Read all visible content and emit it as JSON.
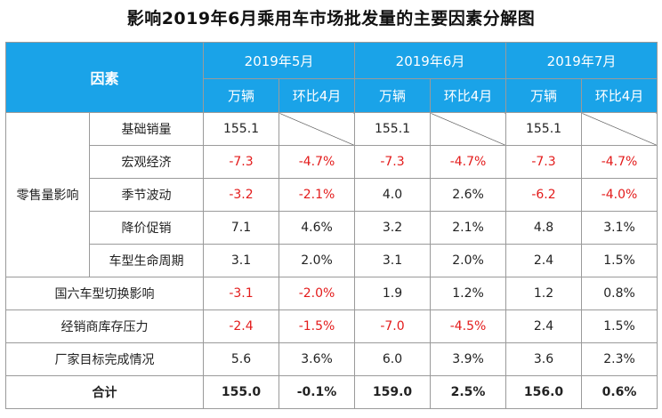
{
  "title": "影响2019年6月乘用车市场批发量的主要因素分解图",
  "header": {
    "factor": "因素",
    "months": [
      "2019年5月",
      "2019年6月",
      "2019年7月"
    ],
    "unit_label": "万辆",
    "ratio_label": "环比4月"
  },
  "retail_group": "零售量影响",
  "retail_rows": [
    {
      "name": "基础销量",
      "m5": "155.1",
      "m5r": "",
      "m6": "155.1",
      "m6r": "",
      "m7": "155.1",
      "m7r": ""
    },
    {
      "name": "宏观经济",
      "m5": "-7.3",
      "m5r": "-4.7%",
      "m6": "-7.3",
      "m6r": "-4.7%",
      "m7": "-7.3",
      "m7r": "-4.7%"
    },
    {
      "name": "季节波动",
      "m5": "-3.2",
      "m5r": "-2.1%",
      "m6": "4.0",
      "m6r": "2.6%",
      "m7": "-6.2",
      "m7r": "-4.0%"
    },
    {
      "name": "降价促销",
      "m5": "7.1",
      "m5r": "4.6%",
      "m6": "3.2",
      "m6r": "2.1%",
      "m7": "4.8",
      "m7r": "3.1%"
    },
    {
      "name": "车型生命周期",
      "m5": "3.1",
      "m5r": "2.0%",
      "m6": "3.1",
      "m6r": "2.0%",
      "m7": "2.4",
      "m7r": "1.5%"
    }
  ],
  "other_rows": [
    {
      "name": "国六车型切换影响",
      "m5": "-3.1",
      "m5r": "-2.0%",
      "m6": "1.9",
      "m6r": "1.2%",
      "m7": "1.2",
      "m7r": "0.8%"
    },
    {
      "name": "经销商库存压力",
      "m5": "-2.4",
      "m5r": "-1.5%",
      "m6": "-7.0",
      "m6r": "-4.5%",
      "m7": "2.4",
      "m7r": "1.5%"
    },
    {
      "name": "厂家目标完成情况",
      "m5": "5.6",
      "m5r": "3.6%",
      "m6": "6.0",
      "m6r": "3.9%",
      "m7": "3.6",
      "m7r": "2.3%"
    }
  ],
  "total_row": {
    "name": "合计",
    "m5": "155.0",
    "m5r": "-0.1%",
    "m6": "159.0",
    "m6r": "2.5%",
    "m7": "156.0",
    "m7r": "0.6%"
  },
  "colors": {
    "header_bg": "#1aa3e8",
    "negative": "#e31b1b"
  }
}
